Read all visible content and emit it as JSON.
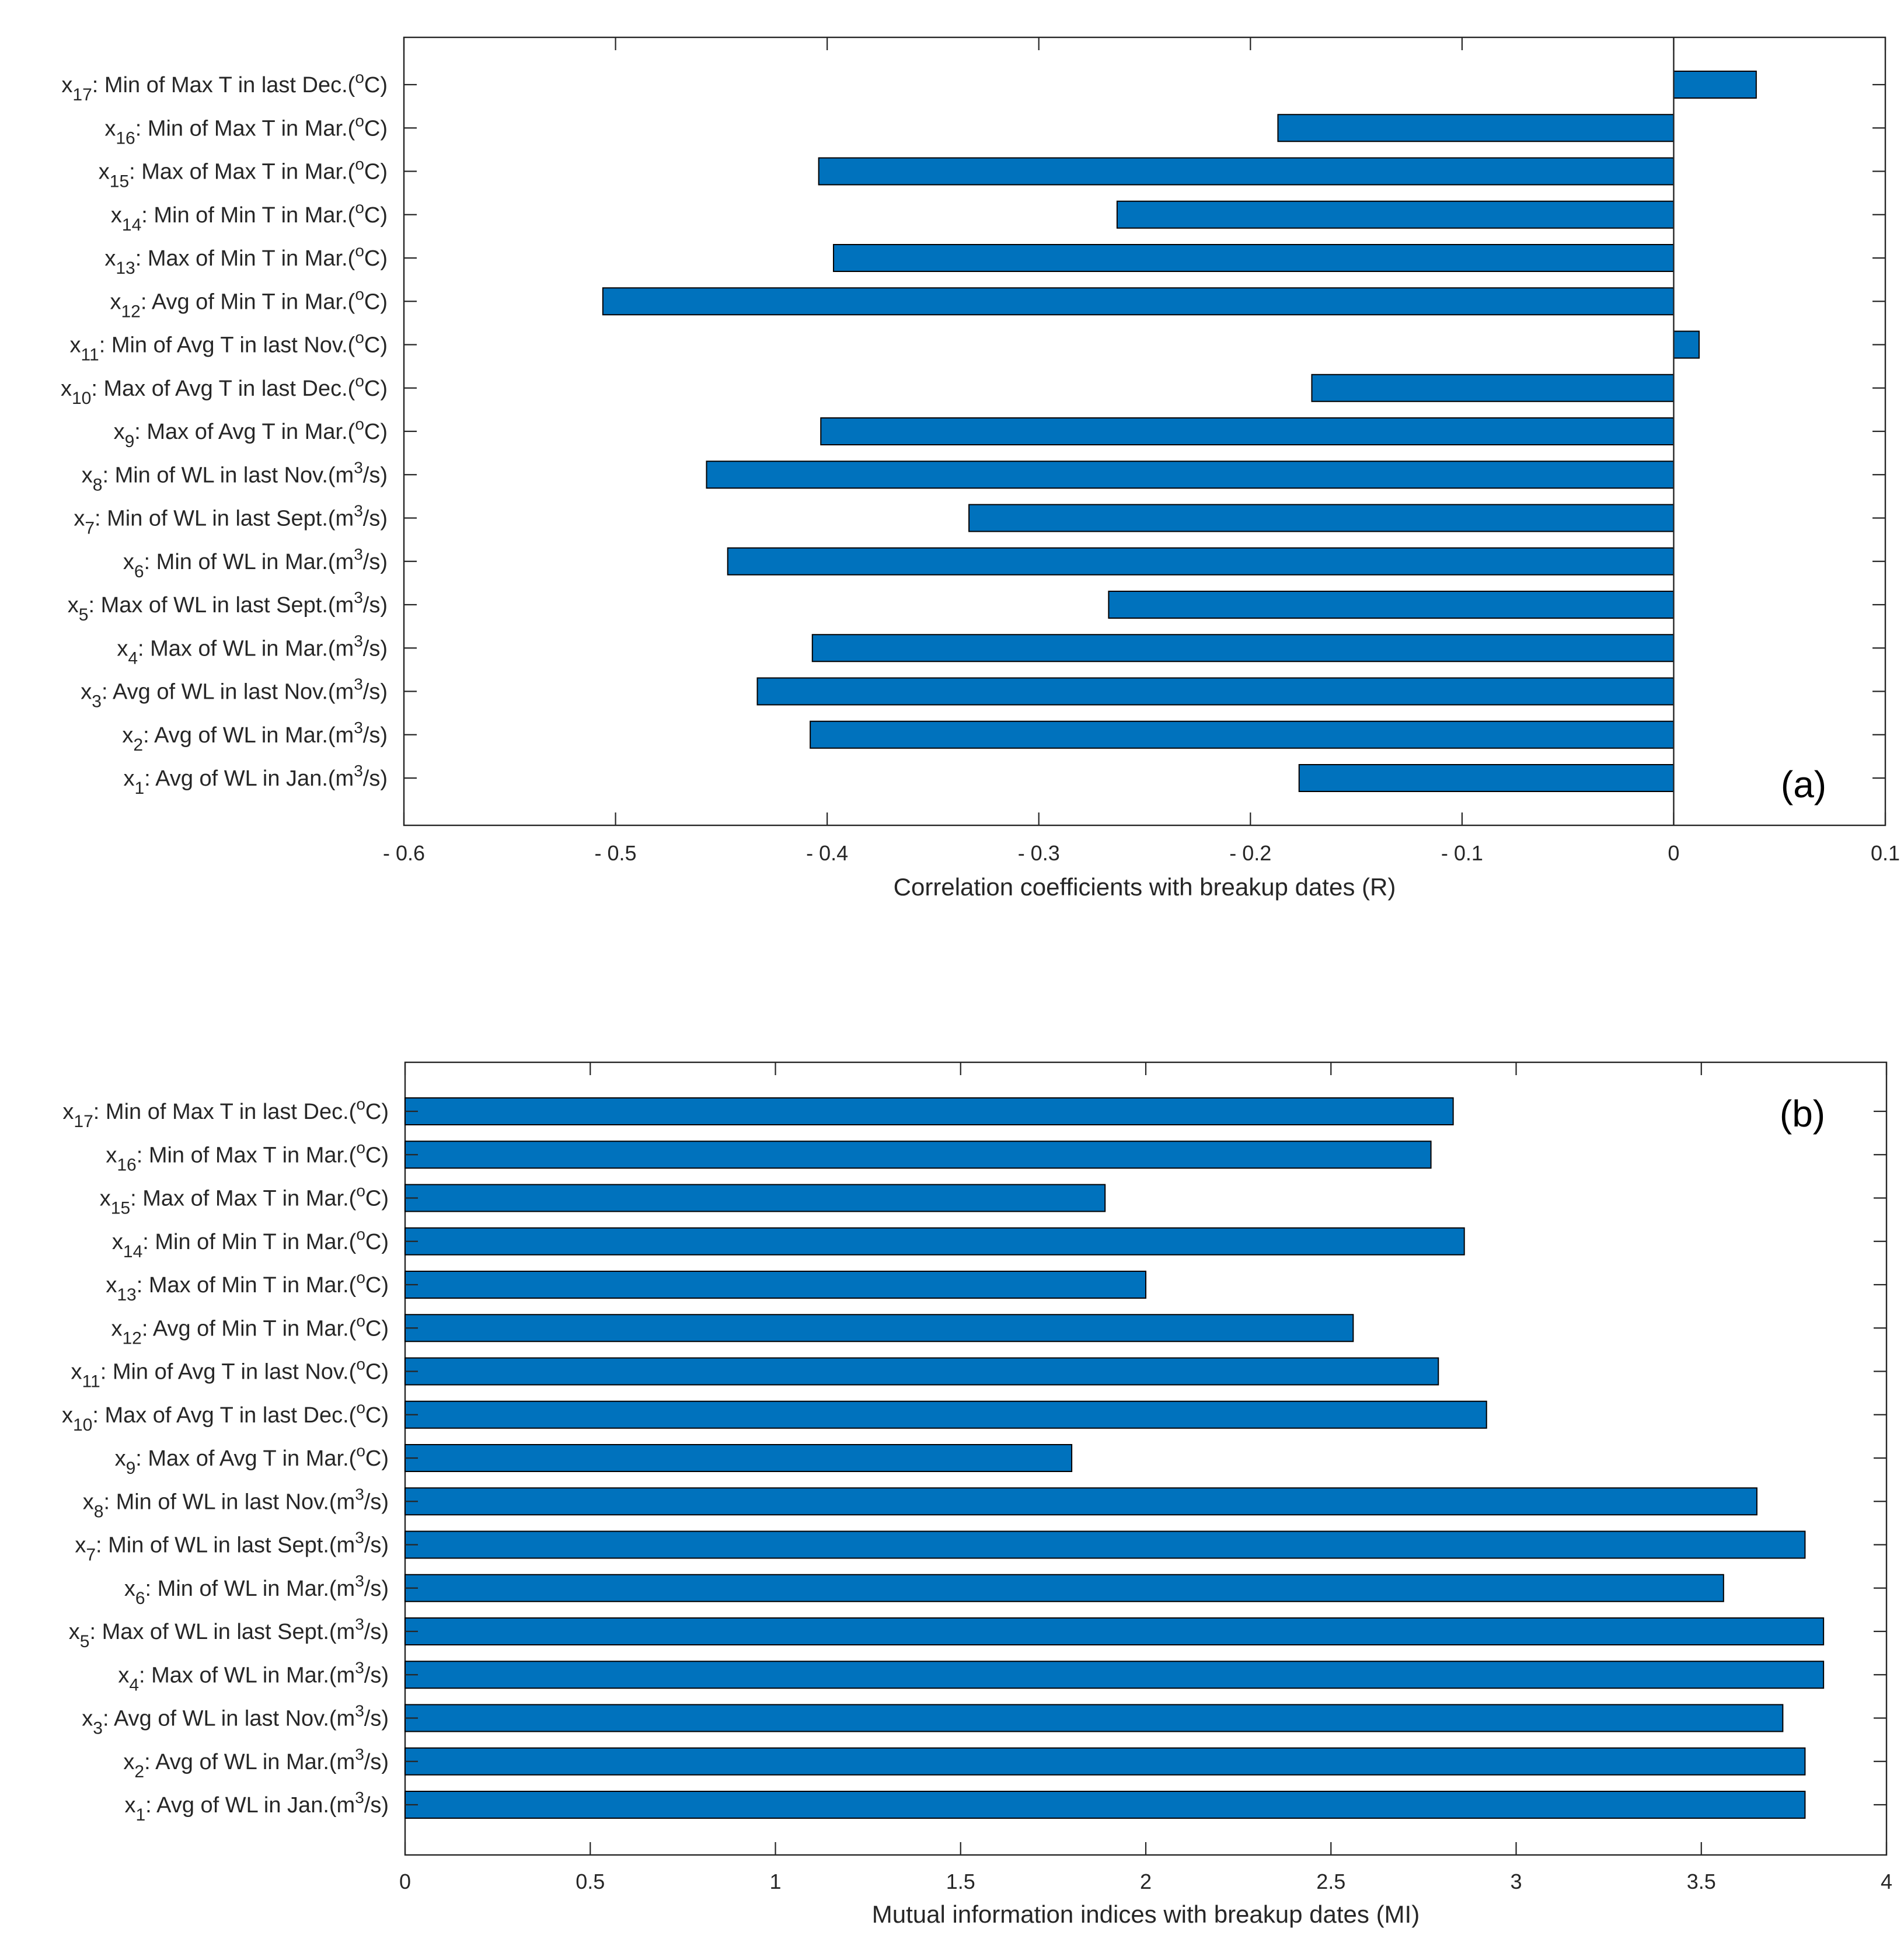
{
  "chart_data": [
    {
      "type": "bar",
      "orientation": "horizontal",
      "panel_label": "(a)",
      "xlabel": "Correlation coefficients with breakup dates (R)",
      "xlim": [
        -0.6,
        0.1
      ],
      "xticks": [
        -0.6,
        -0.5,
        -0.4,
        -0.3,
        -0.2,
        -0.1,
        0,
        0.1
      ],
      "xtick_labels": [
        "- 0.6",
        "- 0.5",
        "- 0.4",
        "- 0.3",
        "- 0.2",
        "- 0.1",
        "0",
        "0.1"
      ],
      "grid": false,
      "bar_color": "#0072BD",
      "categories": [
        {
          "var": "x",
          "sub": "1",
          "text": ": Avg of WL in Jan.(m",
          "sup": "3",
          "tail": "/s)"
        },
        {
          "var": "x",
          "sub": "2",
          "text": ": Avg of WL in Mar.(m",
          "sup": "3",
          "tail": "/s)"
        },
        {
          "var": "x",
          "sub": "3",
          "text": ": Avg of WL in last Nov.(m",
          "sup": "3",
          "tail": "/s)"
        },
        {
          "var": "x",
          "sub": "4",
          "text": ": Max of WL in Mar.(m",
          "sup": "3",
          "tail": "/s)"
        },
        {
          "var": "x",
          "sub": "5",
          "text": ": Max of WL in last Sept.(m",
          "sup": "3",
          "tail": "/s)"
        },
        {
          "var": "x",
          "sub": "6",
          "text": ": Min of WL in Mar.(m",
          "sup": "3",
          "tail": "/s)"
        },
        {
          "var": "x",
          "sub": "7",
          "text": ": Min of WL in last Sept.(m",
          "sup": "3",
          "tail": "/s)"
        },
        {
          "var": "x",
          "sub": "8",
          "text": ": Min of WL in last Nov.(m",
          "sup": "3",
          "tail": "/s)"
        },
        {
          "var": "x",
          "sub": "9",
          "text": ": Max of Avg T in Mar.(",
          "sup": "o",
          "tail": "C)"
        },
        {
          "var": "x",
          "sub": "10",
          "text": ": Max of Avg T in last Dec.(",
          "sup": "o",
          "tail": "C)"
        },
        {
          "var": "x",
          "sub": "11",
          "text": ": Min of Avg T in last Nov.(",
          "sup": "o",
          "tail": "C)"
        },
        {
          "var": "x",
          "sub": "12",
          "text": ": Avg of Min T in Mar.(",
          "sup": "o",
          "tail": "C)"
        },
        {
          "var": "x",
          "sub": "13",
          "text": ": Max of Min T in Mar.(",
          "sup": "o",
          "tail": "C)"
        },
        {
          "var": "x",
          "sub": "14",
          "text": ": Min of Min T in Mar.(",
          "sup": "o",
          "tail": "C)"
        },
        {
          "var": "x",
          "sub": "15",
          "text": ": Max of Max T in Mar.(",
          "sup": "o",
          "tail": "C)"
        },
        {
          "var": "x",
          "sub": "16",
          "text": ": Min of Max T in Mar.(",
          "sup": "o",
          "tail": "C)"
        },
        {
          "var": "x",
          "sub": "17",
          "text": ": Min of Max T in last Dec.(",
          "sup": "o",
          "tail": "C)"
        }
      ],
      "values": [
        -0.177,
        -0.408,
        -0.433,
        -0.407,
        -0.267,
        -0.447,
        -0.333,
        -0.457,
        -0.403,
        -0.171,
        0.012,
        -0.506,
        -0.397,
        -0.263,
        -0.404,
        -0.187,
        0.039
      ]
    },
    {
      "type": "bar",
      "orientation": "horizontal",
      "panel_label": "(b)",
      "xlabel": "Mutual information indices with breakup dates (MI)",
      "xlim": [
        0,
        4
      ],
      "xticks": [
        0,
        0.5,
        1,
        1.5,
        2,
        2.5,
        3,
        3.5,
        4
      ],
      "xtick_labels": [
        "0",
        "0.5",
        "1",
        "1.5",
        "2",
        "2.5",
        "3",
        "3.5",
        "4"
      ],
      "grid": false,
      "bar_color": "#0072BD",
      "categories": [
        {
          "var": "x",
          "sub": "1",
          "text": ": Avg of WL in Jan.(m",
          "sup": "3",
          "tail": "/s)"
        },
        {
          "var": "x",
          "sub": "2",
          "text": ": Avg of WL in Mar.(m",
          "sup": "3",
          "tail": "/s)"
        },
        {
          "var": "x",
          "sub": "3",
          "text": ": Avg of WL in last Nov.(m",
          "sup": "3",
          "tail": "/s)"
        },
        {
          "var": "x",
          "sub": "4",
          "text": ": Max of WL in Mar.(m",
          "sup": "3",
          "tail": "/s)"
        },
        {
          "var": "x",
          "sub": "5",
          "text": ": Max of WL in last Sept.(m",
          "sup": "3",
          "tail": "/s)"
        },
        {
          "var": "x",
          "sub": "6",
          "text": ": Min of WL in Mar.(m",
          "sup": "3",
          "tail": "/s)"
        },
        {
          "var": "x",
          "sub": "7",
          "text": ": Min of WL in last Sept.(m",
          "sup": "3",
          "tail": "/s)"
        },
        {
          "var": "x",
          "sub": "8",
          "text": ": Min of WL in last Nov.(m",
          "sup": "3",
          "tail": "/s)"
        },
        {
          "var": "x",
          "sub": "9",
          "text": ": Max of Avg T in Mar.(",
          "sup": "o",
          "tail": "C)"
        },
        {
          "var": "x",
          "sub": "10",
          "text": ": Max of Avg T in last Dec.(",
          "sup": "o",
          "tail": "C)"
        },
        {
          "var": "x",
          "sub": "11",
          "text": ": Min of Avg T in last Nov.(",
          "sup": "o",
          "tail": "C)"
        },
        {
          "var": "x",
          "sub": "12",
          "text": ": Avg of Min T in Mar.(",
          "sup": "o",
          "tail": "C)"
        },
        {
          "var": "x",
          "sub": "13",
          "text": ": Max of Min T in Mar.(",
          "sup": "o",
          "tail": "C)"
        },
        {
          "var": "x",
          "sub": "14",
          "text": ": Min of Min T in Mar.(",
          "sup": "o",
          "tail": "C)"
        },
        {
          "var": "x",
          "sub": "15",
          "text": ": Max of Max T in Mar.(",
          "sup": "o",
          "tail": "C)"
        },
        {
          "var": "x",
          "sub": "16",
          "text": ": Min of Max T in Mar.(",
          "sup": "o",
          "tail": "C)"
        },
        {
          "var": "x",
          "sub": "17",
          "text": ": Min of Max T in last Dec.(",
          "sup": "o",
          "tail": "C)"
        }
      ],
      "values": [
        3.78,
        3.78,
        3.72,
        3.83,
        3.83,
        3.56,
        3.78,
        3.65,
        1.8,
        2.92,
        2.79,
        2.56,
        2.0,
        2.86,
        1.89,
        2.77,
        2.83
      ]
    }
  ]
}
